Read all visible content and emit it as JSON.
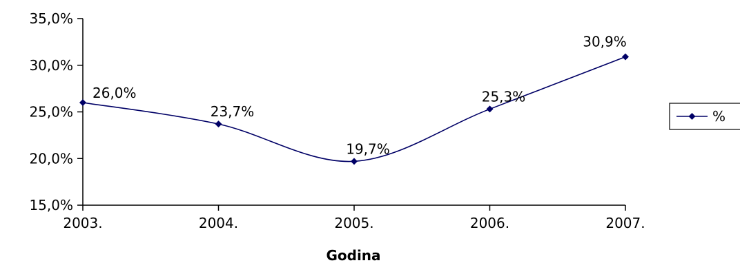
{
  "chart_data": {
    "type": "line",
    "categories": [
      "2003.",
      "2004.",
      "2005.",
      "2006.",
      "2007."
    ],
    "series": [
      {
        "name": "%",
        "values": [
          26.0,
          23.7,
          19.7,
          25.3,
          30.9
        ],
        "labels": [
          "26,0%",
          "23,7%",
          "19,7%",
          "25,3%",
          "30,9%"
        ],
        "color": "#000066"
      }
    ],
    "title": "",
    "xlabel": "Godina",
    "ylabel": "",
    "ylim": [
      15,
      35
    ],
    "yticks": [
      15,
      20,
      25,
      30,
      35
    ],
    "ytick_labels": [
      "15,0%",
      "20,0%",
      "25,0%",
      "30,0%",
      "35,0%"
    ],
    "grid": false,
    "smooth": true,
    "legend": "right"
  }
}
